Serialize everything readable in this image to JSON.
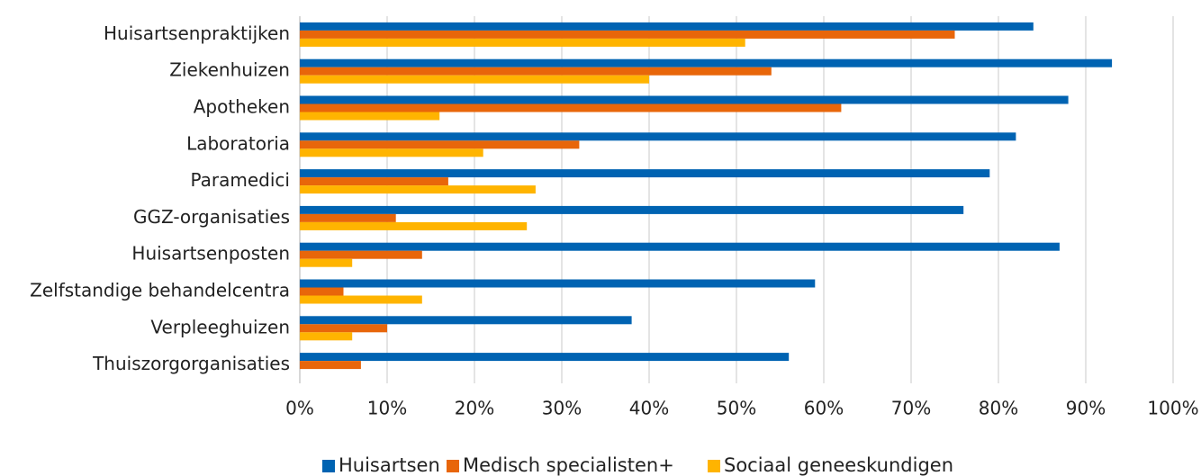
{
  "chart_data": {
    "type": "hbar",
    "categories": [
      "Huisartsenpraktijken",
      "Ziekenhuizen",
      "Apotheken",
      "Laboratoria",
      "Paramedici",
      "GGZ-organisaties",
      "Huisartsenposten",
      "Zelfstandige behandelcentra",
      "Verpleeghuizen",
      "Thuiszorgorganisaties"
    ],
    "series": [
      {
        "name": "Huisartsen",
        "color": "#0063b2",
        "values": [
          84,
          93,
          88,
          82,
          79,
          76,
          87,
          59,
          38,
          56
        ]
      },
      {
        "name": "Medisch specialisten+",
        "color": "#e8660a",
        "values": [
          75,
          54,
          62,
          32,
          17,
          11,
          14,
          5,
          10,
          7
        ]
      },
      {
        "name": "Sociaal geneeskundigen",
        "color": "#ffb400",
        "values": [
          51,
          40,
          16,
          21,
          27,
          26,
          6,
          14,
          6,
          0
        ]
      }
    ],
    "xlim": [
      0,
      100
    ],
    "xticks": [
      {
        "value": 0,
        "label": "0%"
      },
      {
        "value": 10,
        "label": "10%"
      },
      {
        "value": 20,
        "label": "20%"
      },
      {
        "value": 30,
        "label": "30%"
      },
      {
        "value": 40,
        "label": "40%"
      },
      {
        "value": 50,
        "label": "50%"
      },
      {
        "value": 60,
        "label": "60%"
      },
      {
        "value": 70,
        "label": "70%"
      },
      {
        "value": 80,
        "label": "80%"
      },
      {
        "value": 90,
        "label": "90%"
      },
      {
        "value": 100,
        "label": "100%"
      }
    ],
    "grid": true,
    "legend": "bottom"
  }
}
